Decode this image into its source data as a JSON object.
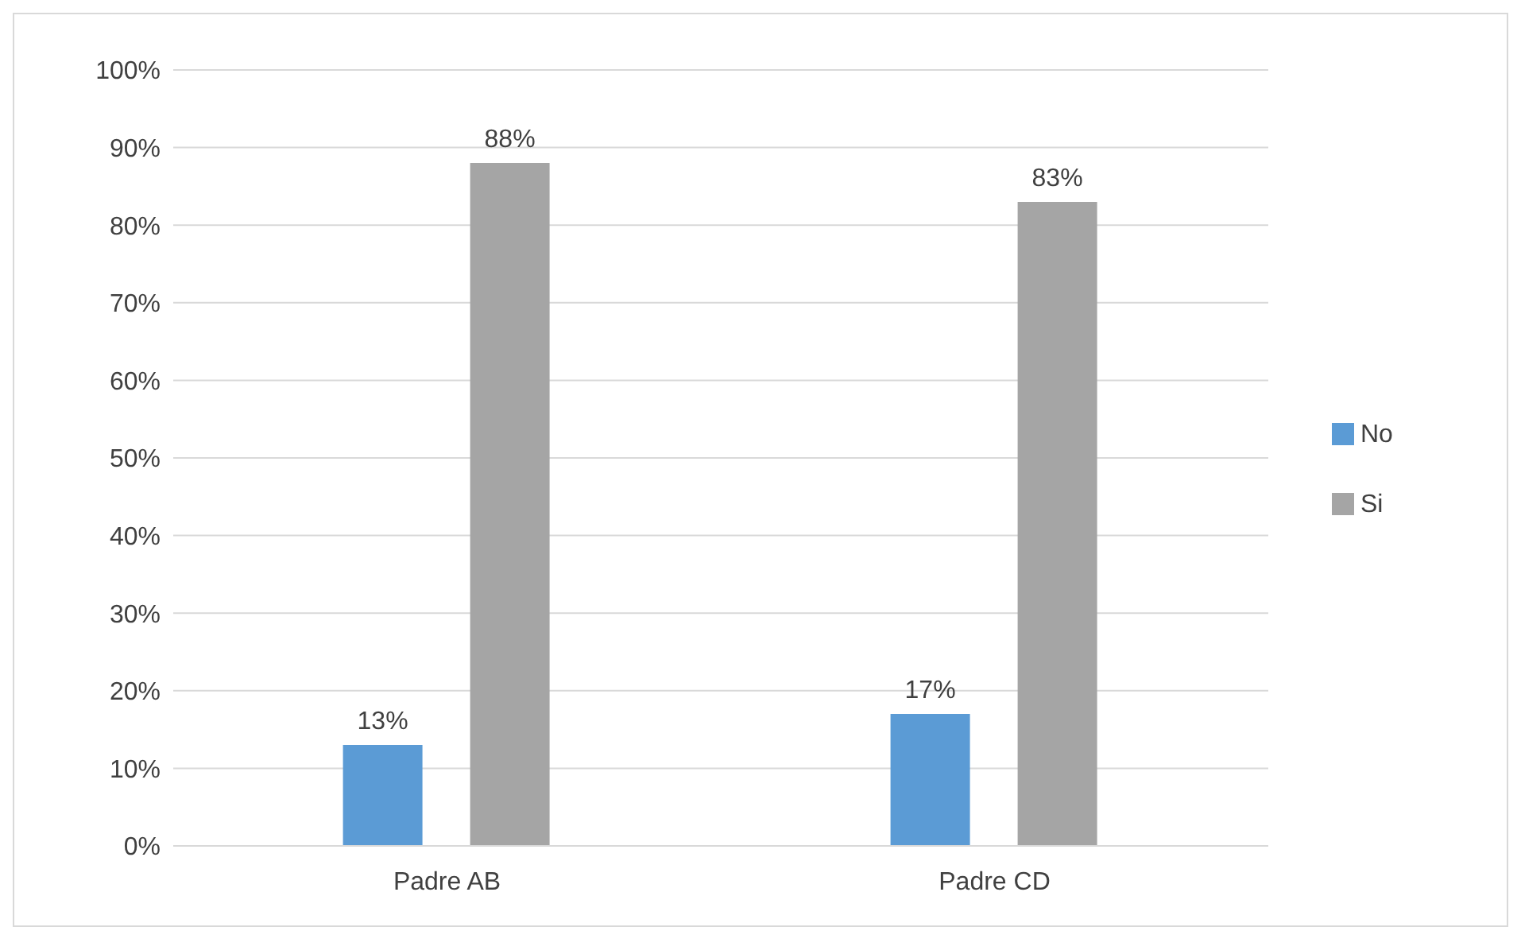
{
  "chart_data": {
    "type": "bar",
    "categories": [
      "Padre AB",
      "Padre CD"
    ],
    "series": [
      {
        "name": "No",
        "color": "#5b9bd5",
        "values": [
          13,
          17
        ],
        "value_labels": [
          "13%",
          "17%"
        ]
      },
      {
        "name": "Si",
        "color": "#a5a5a5",
        "values": [
          88,
          83
        ],
        "value_labels": [
          "88%",
          "83%"
        ]
      }
    ],
    "ylim": [
      0,
      100
    ],
    "yticks": [
      {
        "value": 0,
        "label": "0%"
      },
      {
        "value": 10,
        "label": "10%"
      },
      {
        "value": 20,
        "label": "20%"
      },
      {
        "value": 30,
        "label": "30%"
      },
      {
        "value": 40,
        "label": "40%"
      },
      {
        "value": 50,
        "label": "50%"
      },
      {
        "value": 60,
        "label": "60%"
      },
      {
        "value": 70,
        "label": "70%"
      },
      {
        "value": 80,
        "label": "80%"
      },
      {
        "value": 90,
        "label": "90%"
      },
      {
        "value": 100,
        "label": "100%"
      }
    ],
    "grid": "y",
    "legend": "right"
  }
}
